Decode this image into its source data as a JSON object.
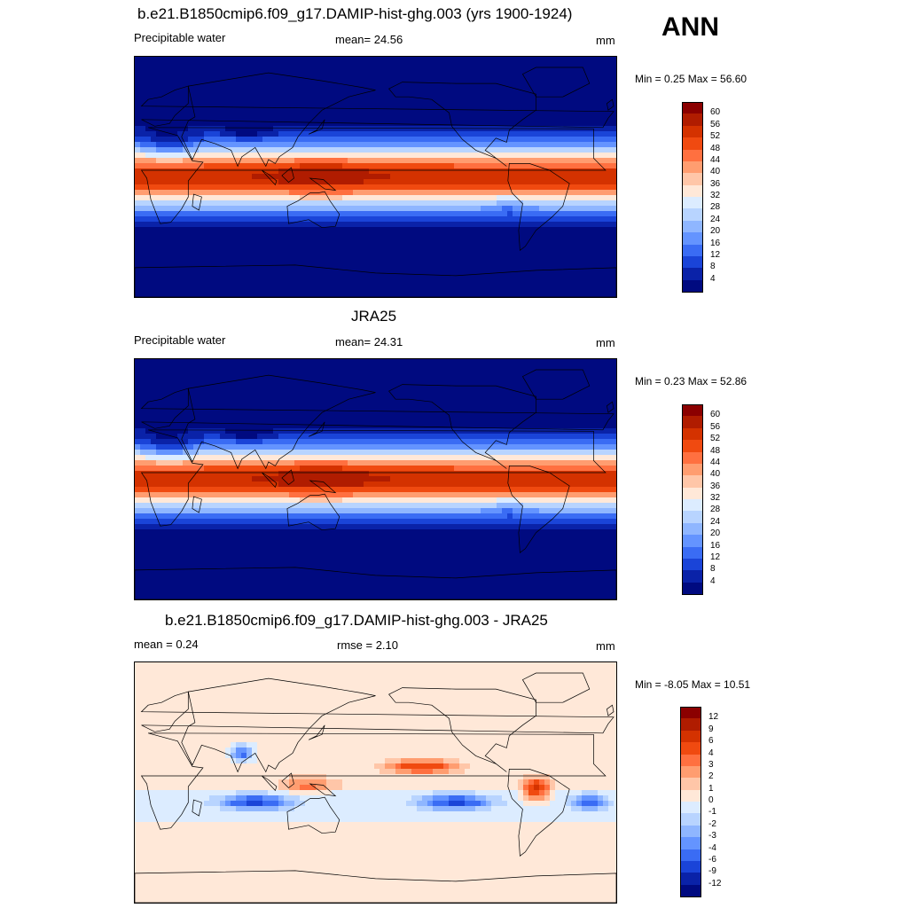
{
  "season": "ANN",
  "panels": [
    {
      "id": "model",
      "title": "b.e21.B1850cmip6.f09_g17.DAMIP-hist-ghg.003 (yrs 1900-1924)",
      "left_label": "Precipitable water",
      "center_label": "mean=  24.56",
      "units": "mm",
      "minmax": "Min =   0.25 Max =  56.60",
      "type": "abs"
    },
    {
      "id": "obs",
      "title": "JRA25",
      "left_label": "Precipitable water",
      "center_label": "mean=  24.31",
      "units": "mm",
      "minmax": "Min =   0.23 Max =  52.86",
      "type": "abs"
    },
    {
      "id": "diff",
      "title": "b.e21.B1850cmip6.f09_g17.DAMIP-hist-ghg.003 - JRA25",
      "left_label": "mean =   0.24",
      "center_label": "rmse =   2.10",
      "units": "mm",
      "minmax": "Min =  -8.05 Max =  10.51",
      "type": "diff"
    }
  ],
  "colorbars": {
    "abs": {
      "labels": [
        "60",
        "56",
        "52",
        "48",
        "44",
        "40",
        "36",
        "32",
        "28",
        "24",
        "20",
        "16",
        "12",
        "8",
        "4"
      ],
      "colors": [
        "#8b0000",
        "#b01c00",
        "#d43200",
        "#f04a10",
        "#ff7040",
        "#ff9d70",
        "#ffc6a8",
        "#ffe8d8",
        "#dcecff",
        "#b8d4ff",
        "#8fb6ff",
        "#6494ff",
        "#3a6cf4",
        "#1a44d8",
        "#0a22a8",
        "#000a80"
      ]
    },
    "diff": {
      "labels": [
        "12",
        "9",
        "6",
        "4",
        "3",
        "2",
        "1",
        "0",
        "-1",
        "-2",
        "-3",
        "-4",
        "-6",
        "-9",
        "-12"
      ],
      "colors": [
        "#8b0000",
        "#b01c00",
        "#d43200",
        "#f04a10",
        "#ff7040",
        "#ff9d70",
        "#ffc6a8",
        "#ffe8d8",
        "#dcecff",
        "#b8d4ff",
        "#8fb6ff",
        "#6494ff",
        "#3a6cf4",
        "#1a44d8",
        "#0a22a8",
        "#000a80"
      ]
    }
  }
}
